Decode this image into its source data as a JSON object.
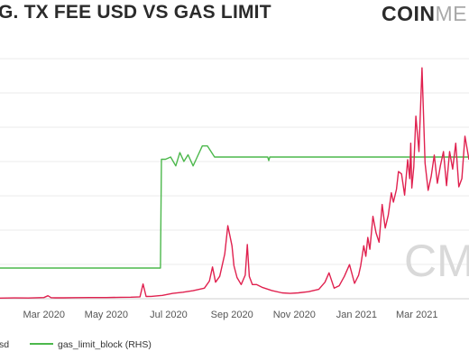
{
  "header": {
    "title": "G. TX FEE USD VS GAS LIMIT",
    "logo_strong": "COIN",
    "logo_light": "ME"
  },
  "watermark": "CM",
  "chart_data": {
    "type": "line",
    "title": "G. TX FEE USD VS GAS LIMIT",
    "x_range": [
      "2020-01-18",
      "2021-04-21"
    ],
    "x_ticks": [
      "Mar 2020",
      "May 2020",
      "Jul 2020",
      "Sep 2020",
      "Nov 2020",
      "Jan 2021",
      "Mar 2021"
    ],
    "grid": "horizontal",
    "legend": "bottom",
    "series": [
      {
        "name": "sd",
        "axis": "left",
        "color": "#e0214f",
        "x": [
          "2020-01-18",
          "2020-02-01",
          "2020-02-15",
          "2020-03-01",
          "2020-03-05",
          "2020-03-08",
          "2020-03-12",
          "2020-03-20",
          "2020-04-01",
          "2020-04-15",
          "2020-05-01",
          "2020-05-15",
          "2020-05-25",
          "2020-06-03",
          "2020-06-06",
          "2020-06-09",
          "2020-06-14",
          "2020-06-25",
          "2020-07-05",
          "2020-07-15",
          "2020-07-25",
          "2020-08-05",
          "2020-08-10",
          "2020-08-13",
          "2020-08-16",
          "2020-08-20",
          "2020-08-25",
          "2020-08-28",
          "2020-09-01",
          "2020-09-03",
          "2020-09-06",
          "2020-09-10",
          "2020-09-14",
          "2020-09-16",
          "2020-09-18",
          "2020-09-21",
          "2020-09-25",
          "2020-10-01",
          "2020-10-10",
          "2020-10-20",
          "2020-10-28",
          "2020-11-05",
          "2020-11-15",
          "2020-11-25",
          "2020-12-01",
          "2020-12-05",
          "2020-12-10",
          "2020-12-15",
          "2020-12-20",
          "2020-12-25",
          "2020-12-30",
          "2021-01-03",
          "2021-01-05",
          "2021-01-08",
          "2021-01-10",
          "2021-01-12",
          "2021-01-14",
          "2021-01-17",
          "2021-01-20",
          "2021-01-23",
          "2021-01-26",
          "2021-01-29",
          "2021-02-01",
          "2021-02-04",
          "2021-02-06",
          "2021-02-09",
          "2021-02-11",
          "2021-02-14",
          "2021-02-17",
          "2021-02-20",
          "2021-02-22",
          "2021-02-23",
          "2021-02-24",
          "2021-02-26",
          "2021-02-28",
          "2021-03-03",
          "2021-03-06",
          "2021-03-09",
          "2021-03-12",
          "2021-03-15",
          "2021-03-18",
          "2021-03-21",
          "2021-03-24",
          "2021-03-27",
          "2021-03-30",
          "2021-04-02",
          "2021-04-05",
          "2021-04-08",
          "2021-04-11",
          "2021-04-14",
          "2021-04-17",
          "2021-04-21"
        ],
        "y": [
          0.5,
          0.7,
          0.6,
          1.0,
          2.5,
          0.9,
          0.8,
          0.8,
          0.9,
          1.0,
          1.0,
          1.2,
          1.3,
          1.6,
          12.5,
          1.9,
          2.0,
          2.8,
          4.5,
          5.5,
          6.8,
          9.0,
          15.0,
          27.0,
          14.0,
          19.0,
          38.0,
          62.0,
          45.0,
          28.0,
          18.0,
          12.0,
          20.0,
          46.0,
          19.0,
          12.0,
          12.0,
          9.5,
          7.0,
          5.0,
          4.5,
          5.0,
          6.0,
          8.0,
          14.0,
          22.0,
          9.0,
          11.0,
          19.0,
          29.0,
          13.0,
          20.0,
          28.0,
          45.0,
          36.0,
          52.0,
          42.0,
          70.0,
          56.0,
          48.0,
          80.0,
          60.0,
          71.0,
          90.0,
          82.0,
          93.0,
          108.0,
          106.0,
          88.0,
          118.0,
          102.0,
          132.0,
          94.0,
          112.0,
          155.0,
          125.0,
          196.0,
          115.0,
          92.0,
          104.0,
          122.0,
          98.0,
          113.0,
          125.0,
          96.0,
          125.0,
          110.0,
          132.0,
          95.0,
          102.0,
          138.0,
          118.0
        ]
      },
      {
        "name": "gas_limit_block (RHS)",
        "axis": "right",
        "color": "#4cb84c",
        "x": [
          "2020-01-18",
          "2020-02-15",
          "2020-03-20",
          "2020-04-15",
          "2020-05-15",
          "2020-06-20",
          "2020-06-23",
          "2020-06-24",
          "2020-06-28",
          "2020-07-03",
          "2020-07-08",
          "2020-07-12",
          "2020-07-16",
          "2020-07-20",
          "2020-07-25",
          "2020-07-28",
          "2020-08-03",
          "2020-08-08",
          "2020-08-15",
          "2020-09-01",
          "2020-09-20",
          "2020-10-06",
          "2020-10-07",
          "2020-10-08",
          "2020-10-15",
          "2020-11-01",
          "2020-12-01",
          "2021-01-01",
          "2021-02-01",
          "2021-03-01",
          "2021-04-01",
          "2021-04-21"
        ],
        "y": [
          10.0,
          10.0,
          10.0,
          10.0,
          10.0,
          10.0,
          10.0,
          12.45,
          12.45,
          12.5,
          12.3,
          12.6,
          12.4,
          12.55,
          12.3,
          12.45,
          12.75,
          12.75,
          12.5,
          12.5,
          12.5,
          12.5,
          12.42,
          12.5,
          12.5,
          12.5,
          12.5,
          12.5,
          12.5,
          12.5,
          12.5,
          12.5
        ]
      }
    ]
  }
}
